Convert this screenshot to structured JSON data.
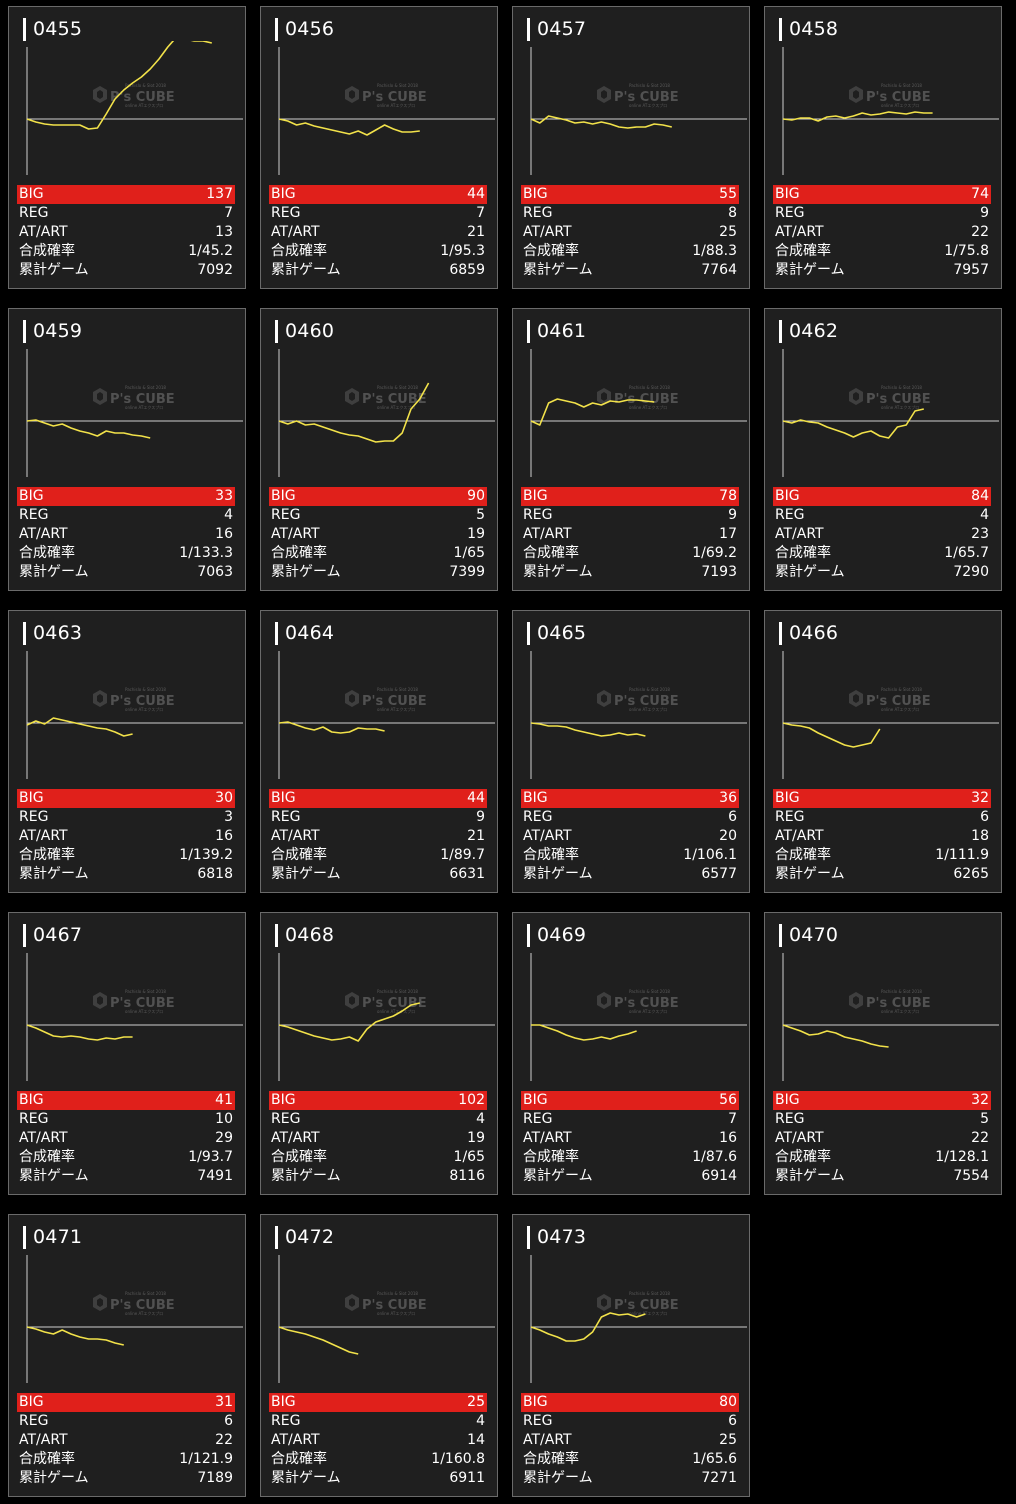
{
  "labels": {
    "big": "BIG",
    "reg": "REG",
    "atart": "AT/ART",
    "prob": "合成確率",
    "games": "累計ゲーム"
  },
  "watermark": {
    "name": "P's CUBE",
    "subtitle": "Pachislo & Slot 2018",
    "tagline": "online ATエクスプロ"
  },
  "colors": {
    "background": "#000000",
    "panel": "#1f1f1f",
    "border": "#6a6a6a",
    "big_row": "#e0201b",
    "graph_line": "#f2e24a",
    "baseline": "#cfcfcf"
  },
  "machines": [
    {
      "id": "0455",
      "big": "137",
      "reg": "7",
      "atart": "13",
      "prob": "1/45.2",
      "games": "7092",
      "trend": [
        0,
        -3,
        -5,
        -6,
        -6,
        -6,
        -6,
        -10,
        -9,
        5,
        20,
        29,
        36,
        42,
        50,
        60,
        72,
        82,
        80,
        78,
        78,
        76
      ]
    },
    {
      "id": "0456",
      "big": "44",
      "reg": "7",
      "atart": "21",
      "prob": "1/95.3",
      "games": "6859",
      "trend": [
        0,
        -2,
        -6,
        -4,
        -7,
        -9,
        -11,
        -13,
        -15,
        -12,
        -16,
        -11,
        -6,
        -10,
        -13,
        -13,
        -12
      ]
    },
    {
      "id": "0457",
      "big": "55",
      "reg": "8",
      "atart": "25",
      "prob": "1/88.3",
      "games": "7764",
      "trend": [
        0,
        -4,
        3,
        1,
        -1,
        -4,
        -3,
        -5,
        -3,
        -5,
        -8,
        -9,
        -8,
        -8,
        -5,
        -6,
        -8
      ]
    },
    {
      "id": "0458",
      "big": "74",
      "reg": "9",
      "atart": "22",
      "prob": "1/75.8",
      "games": "7957",
      "trend": [
        0,
        -1,
        1,
        1,
        -2,
        2,
        3,
        1,
        3,
        6,
        4,
        5,
        7,
        6,
        5,
        7,
        6,
        6
      ]
    },
    {
      "id": "0459",
      "big": "33",
      "reg": "4",
      "atart": "16",
      "prob": "1/133.3",
      "games": "7063",
      "trend": [
        0,
        1,
        -2,
        -5,
        -3,
        -7,
        -10,
        -12,
        -15,
        -10,
        -12,
        -12,
        -14,
        -15,
        -17
      ]
    },
    {
      "id": "0460",
      "big": "90",
      "reg": "5",
      "atart": "19",
      "prob": "1/65",
      "games": "7399",
      "trend": [
        0,
        -3,
        0,
        -4,
        -3,
        -6,
        -9,
        -12,
        -14,
        -15,
        -18,
        -21,
        -20,
        -20,
        -12,
        12,
        22,
        38
      ]
    },
    {
      "id": "0461",
      "big": "78",
      "reg": "9",
      "atart": "17",
      "prob": "1/69.2",
      "games": "7193",
      "trend": [
        0,
        -4,
        18,
        22,
        20,
        18,
        14,
        18,
        16,
        20,
        19,
        21,
        21,
        20,
        19
      ]
    },
    {
      "id": "0462",
      "big": "84",
      "reg": "4",
      "atart": "23",
      "prob": "1/65.7",
      "games": "7290",
      "trend": [
        0,
        -2,
        1,
        -1,
        -2,
        -6,
        -9,
        -12,
        -16,
        -12,
        -10,
        -15,
        -17,
        -6,
        -4,
        10,
        12
      ]
    },
    {
      "id": "0463",
      "big": "30",
      "reg": "3",
      "atart": "16",
      "prob": "1/139.2",
      "games": "6818",
      "trend": [
        -2,
        2,
        -1,
        5,
        3,
        1,
        -1,
        -3,
        -5,
        -6,
        -9,
        -13,
        -11
      ]
    },
    {
      "id": "0464",
      "big": "44",
      "reg": "9",
      "atart": "21",
      "prob": "1/89.7",
      "games": "6631",
      "trend": [
        0,
        1,
        -2,
        -5,
        -7,
        -4,
        -9,
        -10,
        -9,
        -5,
        -6,
        -6,
        -8
      ]
    },
    {
      "id": "0465",
      "big": "36",
      "reg": "6",
      "atart": "20",
      "prob": "1/106.1",
      "games": "6577",
      "trend": [
        0,
        -1,
        -3,
        -3,
        -4,
        -7,
        -9,
        -11,
        -13,
        -12,
        -10,
        -12,
        -11,
        -13
      ]
    },
    {
      "id": "0466",
      "big": "32",
      "reg": "6",
      "atart": "18",
      "prob": "1/111.9",
      "games": "6265",
      "trend": [
        0,
        -2,
        -3,
        -5,
        -10,
        -14,
        -18,
        -22,
        -24,
        -22,
        -20,
        -6
      ]
    },
    {
      "id": "0467",
      "big": "41",
      "reg": "10",
      "atart": "29",
      "prob": "1/93.7",
      "games": "7491",
      "trend": [
        0,
        -3,
        -7,
        -11,
        -12,
        -11,
        -12,
        -14,
        -15,
        -13,
        -14,
        -12,
        -12
      ]
    },
    {
      "id": "0468",
      "big": "102",
      "reg": "4",
      "atart": "19",
      "prob": "1/65",
      "games": "8116",
      "trend": [
        0,
        -2,
        -5,
        -8,
        -11,
        -13,
        -15,
        -14,
        -12,
        -16,
        -4,
        3,
        6,
        9,
        14,
        20,
        22
      ]
    },
    {
      "id": "0469",
      "big": "56",
      "reg": "7",
      "atart": "16",
      "prob": "1/87.6",
      "games": "6914",
      "trend": [
        0,
        0,
        -3,
        -6,
        -10,
        -13,
        -15,
        -14,
        -12,
        -14,
        -11,
        -9,
        -6
      ]
    },
    {
      "id": "0470",
      "big": "32",
      "reg": "5",
      "atart": "22",
      "prob": "1/128.1",
      "games": "7554",
      "trend": [
        0,
        -3,
        -6,
        -10,
        -9,
        -6,
        -8,
        -12,
        -14,
        -16,
        -19,
        -21,
        -22
      ]
    },
    {
      "id": "0471",
      "big": "31",
      "reg": "6",
      "atart": "22",
      "prob": "1/121.9",
      "games": "7189",
      "trend": [
        0,
        -2,
        -5,
        -7,
        -3,
        -7,
        -10,
        -12,
        -12,
        -13,
        -16,
        -18
      ]
    },
    {
      "id": "0472",
      "big": "25",
      "reg": "4",
      "atart": "14",
      "prob": "1/160.8",
      "games": "6911",
      "trend": [
        0,
        -3,
        -5,
        -7,
        -10,
        -13,
        -17,
        -21,
        -25,
        -27
      ]
    },
    {
      "id": "0473",
      "big": "80",
      "reg": "6",
      "atart": "25",
      "prob": "1/65.6",
      "games": "7271",
      "trend": [
        0,
        -3,
        -7,
        -10,
        -14,
        -14,
        -12,
        -5,
        10,
        14,
        12,
        13,
        10,
        13
      ]
    }
  ]
}
